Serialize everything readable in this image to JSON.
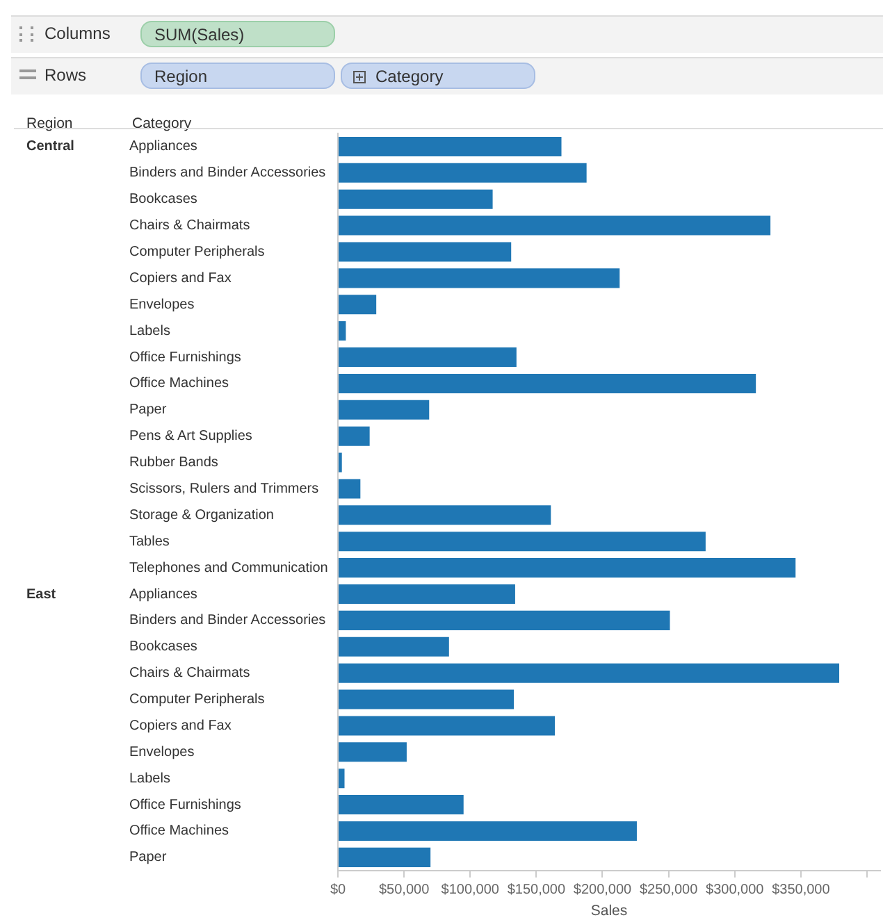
{
  "chart_data": {
    "type": "bar",
    "orientation": "horizontal",
    "xlabel": "Sales",
    "color": "#1f77b4",
    "categories": [
      "Appliances",
      "Binders and Binder Accessories",
      "Bookcases",
      "Chairs & Chairmats",
      "Computer Peripherals",
      "Copiers and Fax",
      "Envelopes",
      "Labels",
      "Office Furnishings",
      "Office Machines",
      "Paper",
      "Pens & Art Supplies",
      "Rubber Bands",
      "Scissors, Rulers and Trimmers",
      "Storage & Organization",
      "Tables",
      "Telephones and Communication",
      "Appliances",
      "Binders and Binder Accessories",
      "Bookcases",
      "Chairs & Chairmats",
      "Computer Peripherals",
      "Copiers and Fax",
      "Envelopes",
      "Labels",
      "Office Furnishings",
      "Office Machines",
      "Paper"
    ],
    "values": [
      169000,
      188000,
      117000,
      327000,
      131000,
      213000,
      29000,
      6000,
      135000,
      316000,
      69000,
      24000,
      3000,
      17000,
      161000,
      278000,
      346000,
      134000,
      251000,
      84000,
      379000,
      133000,
      164000,
      52000,
      5000,
      95000,
      226000,
      70000
    ],
    "xlim": [
      0,
      410000
    ],
    "xticks": [
      {
        "value": 0,
        "label": "$0"
      },
      {
        "value": 50000,
        "label": "$50,000"
      },
      {
        "value": 100000,
        "label": "$100,000"
      },
      {
        "value": 150000,
        "label": "$150,000"
      },
      {
        "value": 200000,
        "label": "$200,000"
      },
      {
        "value": 250000,
        "label": "$250,000"
      },
      {
        "value": 300000,
        "label": "$300,000"
      },
      {
        "value": 350000,
        "label": "$350,000"
      },
      {
        "value": 400000,
        "label": null
      }
    ],
    "annotations": [
      "Columns",
      "SUM(Sales)",
      "Rows",
      "Region",
      "Category",
      "Region",
      "Category",
      "Central",
      "East"
    ],
    "grid": false,
    "legend": false
  }
}
